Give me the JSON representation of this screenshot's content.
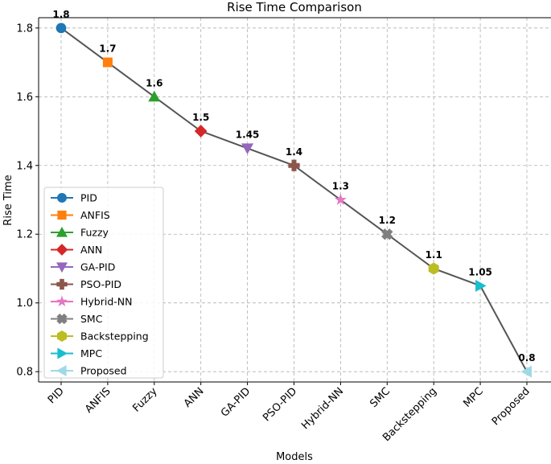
{
  "chart_data": {
    "type": "line",
    "title": "Rise Time Comparison",
    "xlabel": "Models",
    "ylabel": "Rise Time",
    "categories": [
      "PID",
      "ANFIS",
      "Fuzzy",
      "ANN",
      "GA-PID",
      "PSO-PID",
      "Hybrid-NN",
      "SMC",
      "Backstepping",
      "MPC",
      "Proposed"
    ],
    "values": [
      1.8,
      1.7,
      1.6,
      1.5,
      1.45,
      1.4,
      1.3,
      1.2,
      1.1,
      1.05,
      0.8
    ],
    "value_labels": [
      "1.8",
      "1.7",
      "1.6",
      "1.5",
      "1.45",
      "1.4",
      "1.3",
      "1.2",
      "1.1",
      "1.05",
      "0.8"
    ],
    "markers": [
      "circle",
      "square",
      "triangle-up",
      "diamond",
      "triangle-down",
      "plus",
      "star",
      "x",
      "hexagon",
      "triangle-right",
      "triangle-left"
    ],
    "colors": [
      "#1f77b4",
      "#ff7f0e",
      "#2ca02c",
      "#d62728",
      "#9467bd",
      "#8c564b",
      "#e377c2",
      "#7f7f7f",
      "#bcbd22",
      "#17becf",
      "#9edae5"
    ],
    "line_color": "#555555",
    "ylim": [
      0.77,
      1.83
    ],
    "yticks": [
      0.8,
      1.0,
      1.2,
      1.4,
      1.6,
      1.8
    ],
    "ytick_labels": [
      "0.8",
      "1.0",
      "1.2",
      "1.4",
      "1.6",
      "1.8"
    ],
    "grid": true,
    "legend_position": "lower-left"
  }
}
